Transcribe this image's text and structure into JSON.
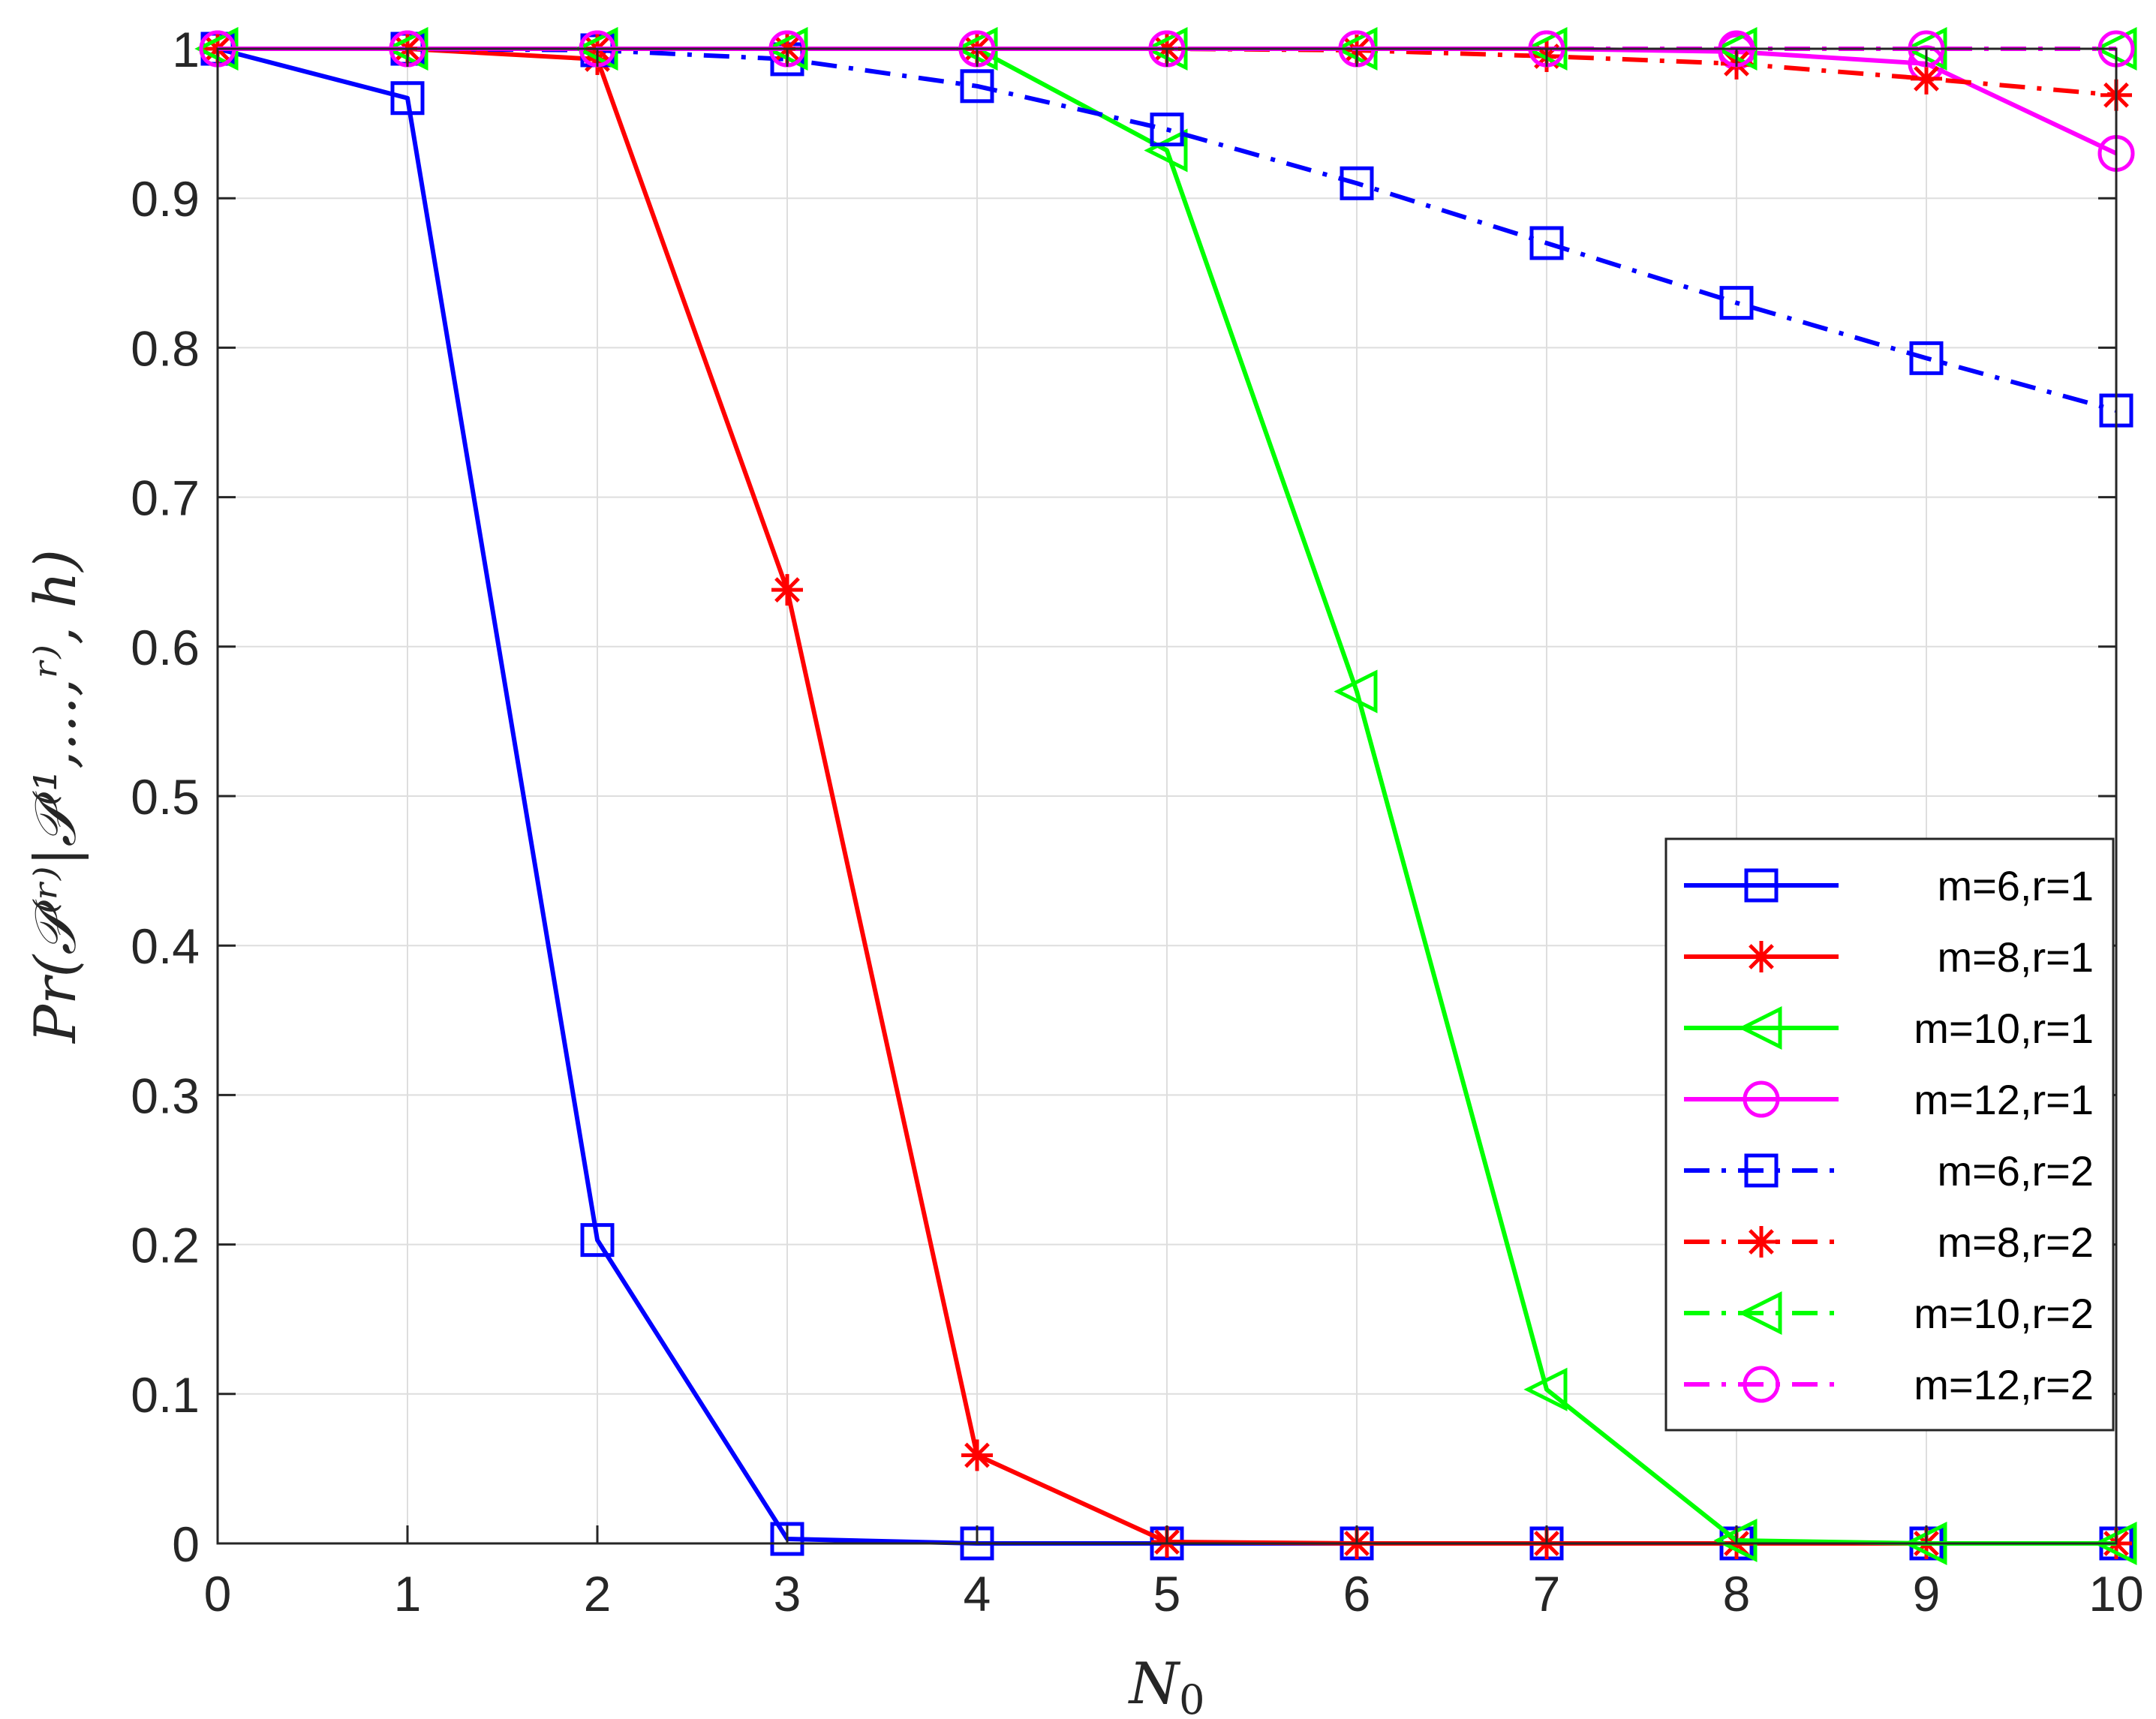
{
  "chart_data": {
    "type": "line",
    "xlabel_main": "N",
    "xlabel_sub": "0",
    "ylabel": "Pr(𝒫⁽ʳ⁾|𝒫⁽¹,...,ʳ⁾, h)",
    "xlim": [
      0,
      10
    ],
    "ylim": [
      0,
      1
    ],
    "x": [
      0,
      1,
      2,
      3,
      4,
      5,
      6,
      7,
      8,
      9,
      10
    ],
    "xticks": [
      "0",
      "1",
      "2",
      "3",
      "4",
      "5",
      "6",
      "7",
      "8",
      "9",
      "10"
    ],
    "yticks": [
      "0",
      "0.1",
      "0.2",
      "0.3",
      "0.4",
      "0.5",
      "0.6",
      "0.7",
      "0.8",
      "0.9",
      "1"
    ],
    "ytick_values": [
      0,
      0.1,
      0.2,
      0.3,
      0.4,
      0.5,
      0.6,
      0.7,
      0.8,
      0.9,
      1
    ],
    "grid": true,
    "legend_position": "bottom-right",
    "series": [
      {
        "name": "m=6,r=1",
        "color": "#0000ff",
        "marker": "square",
        "dash": "solid",
        "values": [
          1,
          0.967,
          0.203,
          0.003,
          0.0,
          0.0,
          0.0,
          0.0,
          0.0,
          0.0,
          0.0
        ]
      },
      {
        "name": "m=8,r=1",
        "color": "#ff0000",
        "marker": "asterisk",
        "dash": "solid",
        "values": [
          1,
          1,
          0.993,
          0.638,
          0.059,
          0.001,
          0.0,
          0.0,
          0.0,
          0.0,
          0.0
        ]
      },
      {
        "name": "m=10,r=1",
        "color": "#00ff00",
        "marker": "triangle-left",
        "dash": "solid",
        "values": [
          1,
          1,
          1,
          1,
          1,
          0.932,
          0.57,
          0.103,
          0.002,
          0.0,
          0.0
        ]
      },
      {
        "name": "m=12,r=1",
        "color": "#ff00ff",
        "marker": "circle",
        "dash": "solid",
        "values": [
          1,
          1,
          1,
          1,
          1,
          1,
          1,
          1,
          0.998,
          0.99,
          0.93
        ]
      },
      {
        "name": "m=6,r=2",
        "color": "#0000ff",
        "marker": "square",
        "dash": "dashdot",
        "values": [
          1,
          1,
          0.999,
          0.993,
          0.975,
          0.946,
          0.91,
          0.87,
          0.83,
          0.793,
          0.758
        ]
      },
      {
        "name": "m=8,r=2",
        "color": "#ff0000",
        "marker": "asterisk",
        "dash": "dashdot",
        "values": [
          1,
          1,
          1,
          1,
          1,
          1,
          0.999,
          0.995,
          0.99,
          0.98,
          0.969
        ]
      },
      {
        "name": "m=10,r=2",
        "color": "#00ff00",
        "marker": "triangle-left",
        "dash": "dashdot",
        "values": [
          1,
          1,
          1,
          1,
          1,
          1,
          1,
          1,
          1,
          1,
          1
        ]
      },
      {
        "name": "m=12,r=2",
        "color": "#ff00ff",
        "marker": "circle",
        "dash": "dashdot",
        "values": [
          1,
          1,
          1,
          1,
          1,
          1,
          1,
          1,
          1,
          1,
          1
        ]
      }
    ]
  }
}
